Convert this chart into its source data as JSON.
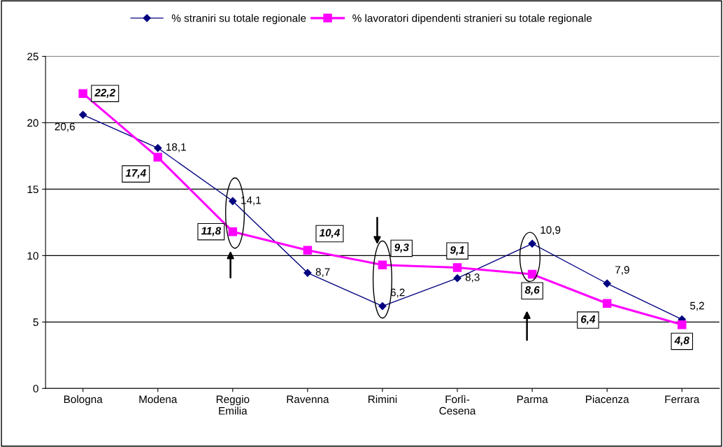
{
  "chart_data": {
    "type": "line",
    "categories": [
      "Bologna",
      "Modena",
      "Reggio\nEmilia",
      "Ravenna",
      "Rimini",
      "Forlì-\nCesena",
      "Parma",
      "Piacenza",
      "Ferrara"
    ],
    "series": [
      {
        "name": "% straniri su totale regionale",
        "color": "#000080",
        "marker": "diamond",
        "values": [
          20.6,
          18.1,
          14.1,
          8.7,
          6.2,
          8.3,
          10.9,
          7.9,
          5.2
        ],
        "value_labels": [
          "20,6",
          "18,1",
          "14,1",
          "8,7",
          "6,2",
          "8,3",
          "10,9",
          "7,9",
          "5,2"
        ]
      },
      {
        "name": "% lavoratori dipendenti stranieri su totale regionale",
        "color": "#ff00ff",
        "marker": "square",
        "values": [
          22.2,
          17.4,
          11.8,
          10.4,
          9.3,
          9.1,
          8.6,
          6.4,
          4.8
        ],
        "value_labels": [
          "22,2",
          "17,4",
          "11,8",
          "10,4",
          "9,3",
          "9,1",
          "8,6",
          "6,4",
          "4,8"
        ]
      }
    ],
    "ylim": [
      0,
      25
    ],
    "yticks": [
      0,
      5,
      10,
      15,
      20,
      25
    ],
    "grid": "y",
    "legend": "top"
  }
}
